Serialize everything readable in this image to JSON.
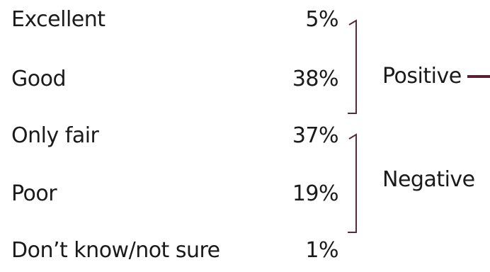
{
  "chart_data": {
    "type": "table",
    "rows": [
      {
        "label": "Excellent",
        "value": 5,
        "display": "5%"
      },
      {
        "label": "Good",
        "value": 38,
        "display": "38%"
      },
      {
        "label": "Only fair",
        "value": 37,
        "display": "37%"
      },
      {
        "label": "Poor",
        "value": 19,
        "display": "19%"
      },
      {
        "label": "Don’t know/not sure",
        "value": 1,
        "display": "1%"
      }
    ],
    "groups": [
      {
        "label": "Positive",
        "rows": [
          0,
          1
        ]
      },
      {
        "label": "Negative",
        "rows": [
          2,
          3
        ]
      }
    ]
  },
  "colors": {
    "text": "#1a1a1a",
    "bracket": "#5a2a3a",
    "connector": "#5a1f33"
  }
}
